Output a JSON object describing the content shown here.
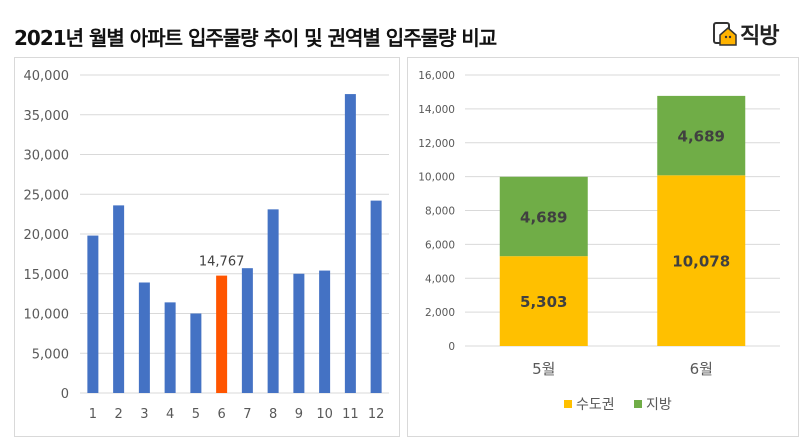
{
  "title": "2021년 월별 아파트 입주물량 추이 및 권역별 입주물량 비교",
  "logo": {
    "text": "직방",
    "icon": "house-logo-icon"
  },
  "colors": {
    "bar": "#4472C4",
    "highlight": "#FF5500",
    "metro": "#FFC000",
    "regional": "#70AD47",
    "grid": "#d9d9d9"
  },
  "chart_data": [
    {
      "type": "bar",
      "title": "",
      "xlabel": "",
      "ylabel": "",
      "categories": [
        "1",
        "2",
        "3",
        "4",
        "5",
        "6",
        "7",
        "8",
        "9",
        "10",
        "11",
        "12"
      ],
      "values": [
        19800,
        23600,
        13900,
        11400,
        10000,
        14767,
        15700,
        23100,
        15000,
        15400,
        37600,
        24200
      ],
      "highlight_index": 5,
      "data_labels": {
        "5": "14,767"
      },
      "ylim": [
        0,
        40000
      ],
      "yticks": [
        0,
        5000,
        10000,
        15000,
        20000,
        25000,
        30000,
        35000,
        40000
      ],
      "ytick_labels": [
        "0",
        "5,000",
        "10,000",
        "15,000",
        "20,000",
        "25,000",
        "30,000",
        "35,000",
        "40,000"
      ],
      "grid": true
    },
    {
      "type": "bar",
      "stacked": true,
      "title": "",
      "categories": [
        "5월",
        "6월"
      ],
      "series": [
        {
          "name": "수도권",
          "values": [
            5303,
            10078
          ],
          "labels": [
            "5,303",
            "10,078"
          ]
        },
        {
          "name": "지방",
          "values": [
            4689,
            4689
          ],
          "labels": [
            "4,689",
            "4,689"
          ]
        }
      ],
      "ylim": [
        0,
        16000
      ],
      "yticks": [
        0,
        2000,
        4000,
        6000,
        8000,
        10000,
        12000,
        14000,
        16000
      ],
      "ytick_labels": [
        "0",
        "2,000",
        "4,000",
        "6,000",
        "8,000",
        "10,000",
        "12,000",
        "14,000",
        "16,000"
      ],
      "grid": true,
      "legend": "bottom"
    }
  ]
}
